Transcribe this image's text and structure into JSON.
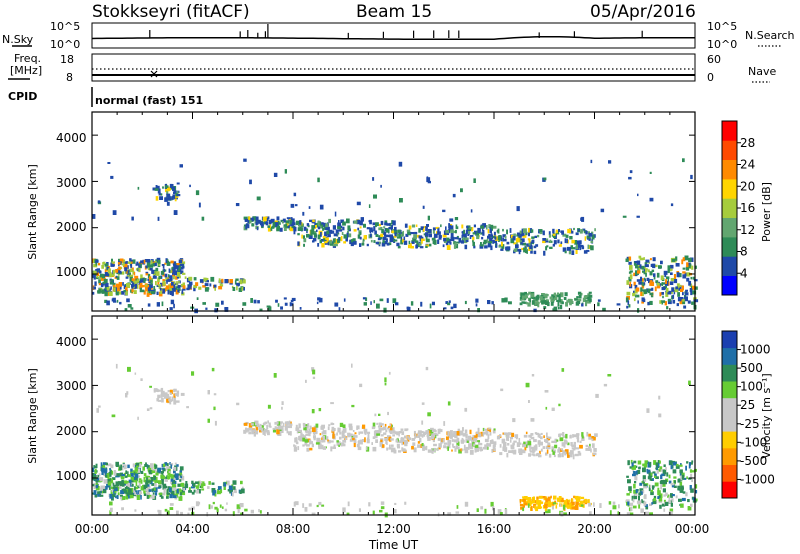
{
  "header": {
    "station": "Stokkseyri (fitACF)",
    "beam": "Beam 15",
    "date": "05/Apr/2016"
  },
  "strip_labels": {
    "nsky": "N.Sky",
    "nsearch": "N.Search",
    "freq_line1": "Freq.",
    "freq_line2": "[MHz]",
    "nave": "Nave",
    "cpid": "CPID",
    "cpid_value": "normal (fast) 151",
    "nsky_ticks": [
      "10^5",
      "10^0"
    ],
    "nsearch_ticks": [
      "10^5",
      "10^0"
    ],
    "freq_ticks": [
      "18",
      "8"
    ],
    "nave_ticks": [
      "60",
      "0"
    ]
  },
  "colors": {
    "power_scale": [
      "#0000ff",
      "#1f49a8",
      "#2e8b57",
      "#62a670",
      "#a6cc3c",
      "#ffd500",
      "#ff8a00",
      "#ff4a00",
      "#ff0000"
    ],
    "velocity_scale": [
      "#ff0000",
      "#ff5a00",
      "#ff9a00",
      "#ffcd00",
      "#c8c8c8",
      "#c8c8c8",
      "#66cc33",
      "#2e8b57",
      "#1f6fa8",
      "#1b3fb0"
    ]
  },
  "chart_data": [
    {
      "type": "heatmap",
      "panel": "power",
      "ylabel": "Slant Range [km]",
      "ylim": [
        200,
        4500
      ],
      "yticks": [
        "4000",
        "3000",
        "2000",
        "1000"
      ],
      "colorbar_label": "Power [dB]",
      "colorbar_ticks": [
        "28",
        "24",
        "20",
        "16",
        "12",
        "8",
        "4"
      ],
      "colorbar_range": [
        0,
        32
      ]
    },
    {
      "type": "heatmap",
      "panel": "velocity",
      "ylabel": "Slant Range [km]",
      "ylim": [
        200,
        4500
      ],
      "yticks": [
        "4000",
        "3000",
        "2000",
        "1000"
      ],
      "colorbar_label": "Velocity [m s⁻¹]",
      "colorbar_ticks": [
        "1000",
        "500",
        "100",
        "25",
        "-25",
        "-100",
        "-500",
        "-1000"
      ]
    }
  ],
  "x_axis": {
    "label": "Time UT",
    "ticks": [
      "00:00",
      "04:00",
      "08:00",
      "12:00",
      "16:00",
      "20:00",
      "00:00"
    ]
  }
}
